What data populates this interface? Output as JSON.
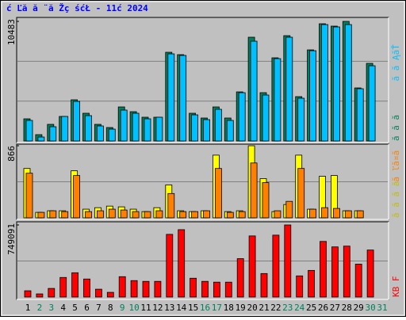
{
  "title": "ć Ľă ă ¨ă Žç śćŁ - 11ć 2024",
  "chart_data": [
    {
      "type": "bar",
      "ylim": [
        0,
        10483
      ],
      "yticks": [
        10483
      ],
      "series": [
        {
          "name": "ă ă ă",
          "color": "#00805c",
          "values": [
            1943,
            555,
            1458,
            2152,
            3610,
            2430,
            1458,
            1180,
            2985,
            2569,
            2083,
            2083,
            7775,
            7567,
            2430,
            2013,
            2985,
            2013,
            4304,
            9095,
            4235,
            7290,
            9233,
            3888,
            7984,
            10275,
            10067,
            10483,
            4651,
            6804,
            0
          ]
        },
        {
          "name": "ă ă ĄăŤ",
          "color": "#00c0ff",
          "values": [
            1805,
            347,
            1250,
            2152,
            3471,
            2222,
            1319,
            1041,
            2708,
            2430,
            1944,
            2083,
            7637,
            7498,
            2291,
            1874,
            2777,
            1805,
            4235,
            8747,
            4027,
            7220,
            9095,
            3749,
            7914,
            10205,
            9997,
            10205,
            4582,
            6595,
            0
          ]
        }
      ]
    },
    {
      "type": "bar",
      "ylim": [
        0,
        866
      ],
      "yticks": [
        866
      ],
      "series": [
        {
          "name": "ă ă ă ă",
          "color": "#ffff00",
          "values": [
            593,
            66,
            85,
            85,
            565,
            104,
            122,
            141,
            132,
            104,
            75,
            122,
            395,
            85,
            75,
            85,
            753,
            75,
            85,
            866,
            471,
            75,
            160,
            753,
            104,
            499,
            508,
            85,
            85,
            0,
            0
          ]
        },
        {
          "name": "ă ľă¤ă",
          "color": "#ff8000",
          "values": [
            536,
            66,
            85,
            75,
            508,
            75,
            85,
            104,
            94,
            75,
            75,
            85,
            292,
            75,
            75,
            85,
            593,
            66,
            75,
            659,
            423,
            85,
            198,
            593,
            104,
            122,
            113,
            85,
            85,
            0,
            0
          ]
        }
      ]
    },
    {
      "type": "bar",
      "ylim": [
        0,
        749091
      ],
      "yticks": [
        749091
      ],
      "categories": [
        "1",
        "2",
        "3",
        "4",
        "5",
        "6",
        "7",
        "8",
        "9",
        "10",
        "11",
        "12",
        "13",
        "14",
        "15",
        "16",
        "17",
        "18",
        "19",
        "20",
        "21",
        "22",
        "23",
        "24",
        "25",
        "26",
        "27",
        "28",
        "29",
        "30",
        "31"
      ],
      "category_colors": [
        "#000000",
        "#00805c",
        "#00805c",
        "#000000",
        "#000000",
        "#000000",
        "#000000",
        "#000000",
        "#00805c",
        "#00805c",
        "#000000",
        "#000000",
        "#000000",
        "#000000",
        "#000000",
        "#00805c",
        "#00805c",
        "#000000",
        "#000000",
        "#000000",
        "#000000",
        "#000000",
        "#00805c",
        "#00805c",
        "#000000",
        "#000000",
        "#000000",
        "#000000",
        "#000000",
        "#00805c",
        "#00805c"
      ],
      "series": [
        {
          "name": "KB F",
          "color": "#ff0000",
          "values": [
            65136,
            32568,
            89562,
            203550,
            252402,
            187266,
            81420,
            48852,
            211692,
            170982,
            162840,
            162840,
            651360,
            700212,
            195408,
            162840,
            154698,
            154698,
            398958,
            635076,
            244260,
            643218,
            749091,
            219834,
            276828,
            578082,
            521088,
            529230,
            341964,
            488520,
            0
          ]
        }
      ]
    }
  ]
}
